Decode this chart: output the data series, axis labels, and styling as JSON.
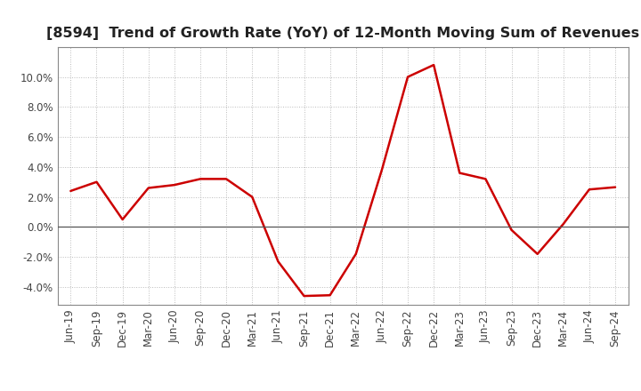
{
  "title": "[8594]  Trend of Growth Rate (YoY) of 12-Month Moving Sum of Revenues",
  "x_labels": [
    "Jun-19",
    "Sep-19",
    "Dec-19",
    "Mar-20",
    "Jun-20",
    "Sep-20",
    "Dec-20",
    "Mar-21",
    "Jun-21",
    "Sep-21",
    "Dec-21",
    "Mar-22",
    "Jun-22",
    "Sep-22",
    "Dec-22",
    "Mar-23",
    "Jun-23",
    "Sep-23",
    "Dec-23",
    "Mar-24",
    "Jun-24",
    "Sep-24"
  ],
  "y_values": [
    2.4,
    3.0,
    0.5,
    2.6,
    2.8,
    3.2,
    3.2,
    2.0,
    -2.3,
    -4.6,
    -4.55,
    -1.8,
    3.8,
    10.0,
    10.8,
    3.6,
    3.2,
    -0.2,
    -1.8,
    0.2,
    2.5,
    2.65
  ],
  "line_color": "#CC0000",
  "line_width": 1.8,
  "ylim": [
    -5.2,
    12.0
  ],
  "yticks": [
    -4.0,
    -2.0,
    0.0,
    2.0,
    4.0,
    6.0,
    8.0,
    10.0
  ],
  "background_color": "#FFFFFF",
  "plot_bg_color": "#FFFFFF",
  "grid_color": "#BBBBBB",
  "title_fontsize": 11.5,
  "tick_fontsize": 8.5,
  "spine_color": "#888888"
}
